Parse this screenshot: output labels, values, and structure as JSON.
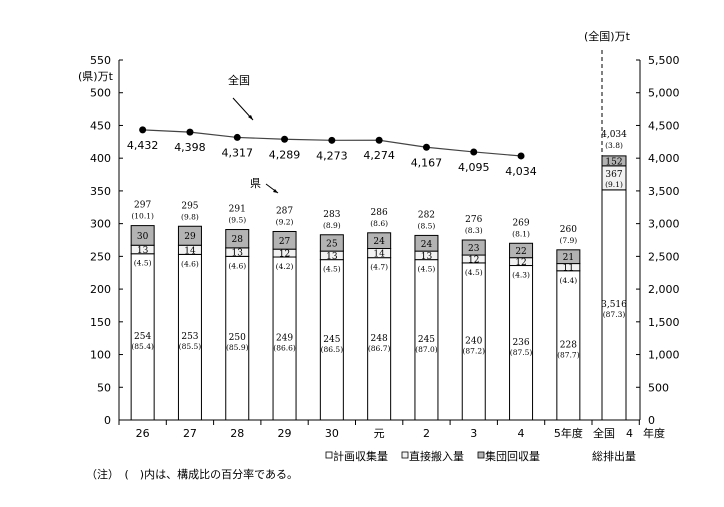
{
  "chart_data": {
    "type": "bar",
    "subtype": "stacked bar with line overlay",
    "title": "",
    "left_axis": {
      "label": "(県)万t",
      "min": 0,
      "max": 550,
      "step": 50,
      "ticks": [
        "0",
        "50",
        "100",
        "150",
        "200",
        "250",
        "300",
        "350",
        "400",
        "450",
        "500",
        "550"
      ]
    },
    "right_axis": {
      "label": "(全国)万t",
      "min": 0,
      "max": 5500,
      "step": 500,
      "ticks": [
        "0",
        "500",
        "1,000",
        "1,500",
        "2,000",
        "2,500",
        "3,000",
        "3,500",
        "4,000",
        "4,500",
        "5,000",
        "5,500"
      ]
    },
    "categories": [
      "26",
      "27",
      "28",
      "29",
      "30",
      "元",
      "2",
      "3",
      "4",
      "5年度"
    ],
    "series": [
      {
        "name": "計画収集量",
        "color": "#ffffff",
        "values": [
          254,
          253,
          250,
          249,
          245,
          248,
          245,
          240,
          236,
          228
        ],
        "percent": [
          "85.4",
          "85.5",
          "85.9",
          "86.6",
          "86.5",
          "86.7",
          "87.0",
          "87.2",
          "87.5",
          "87.7"
        ]
      },
      {
        "name": "直接搬入量",
        "color": "#f2f2f2",
        "values": [
          13,
          14,
          13,
          12,
          13,
          14,
          13,
          12,
          12,
          11
        ],
        "percent": [
          "4.5",
          "4.6",
          "4.6",
          "4.2",
          "4.5",
          "4.7",
          "4.5",
          "4.5",
          "4.3",
          "4.4"
        ]
      },
      {
        "name": "集団回収量",
        "color": "#b3b3b3",
        "values": [
          30,
          29,
          28,
          27,
          25,
          24,
          24,
          23,
          22,
          21
        ],
        "percent": [
          "10.1",
          "9.8",
          "9.5",
          "9.2",
          "8.9",
          "8.6",
          "8.5",
          "8.3",
          "8.1",
          "7.9"
        ]
      }
    ],
    "totals": [
      "297",
      "295",
      "291",
      "287",
      "283",
      "286",
      "282",
      "276",
      "269",
      "260"
    ],
    "line_series": {
      "name": "全国",
      "axis": "right",
      "categories": [
        "26",
        "27",
        "28",
        "29",
        "30",
        "元",
        "2",
        "3",
        "4"
      ],
      "values": [
        4432,
        4398,
        4317,
        4289,
        4273,
        4274,
        4167,
        4095,
        4034
      ],
      "labels": [
        "4,432",
        "4,398",
        "4,317",
        "4,289",
        "4,273",
        "4,274",
        "4,167",
        "4,095",
        "4,034"
      ]
    },
    "national_bar": {
      "category": "全国 4 年度",
      "sublabel": "総排出量",
      "axis": "right",
      "total": "4,034",
      "total_percent": "3.8",
      "segments": [
        {
          "name": "計画収集量",
          "value": 3516,
          "label": "3,516",
          "percent": "87.3"
        },
        {
          "name": "直接搬入量",
          "value": 367,
          "label": "367",
          "percent": "9.1"
        },
        {
          "name": "集団回収量",
          "value": 152,
          "label": "152",
          "percent": "3.8"
        }
      ]
    },
    "annotations": [
      "全国",
      "県"
    ],
    "legend": [
      "計画収集量",
      "直接搬入量",
      "集団回収量"
    ],
    "legend_position": "bottom",
    "grid": false
  },
  "labels": {
    "left_axis_title": "(県)万t",
    "right_axis_title": "(全国)万t",
    "line_annotation": "全国",
    "bar_annotation": "県",
    "national_cat_1": "全国",
    "national_cat_2": "4",
    "national_cat_3": "年度",
    "national_sublabel": "総排出量",
    "legend_1": "計画収集量",
    "legend_2": "直接搬入量",
    "legend_3": "集団回収量"
  },
  "note": "（注）　(　)内は、構成比の百分率である。"
}
